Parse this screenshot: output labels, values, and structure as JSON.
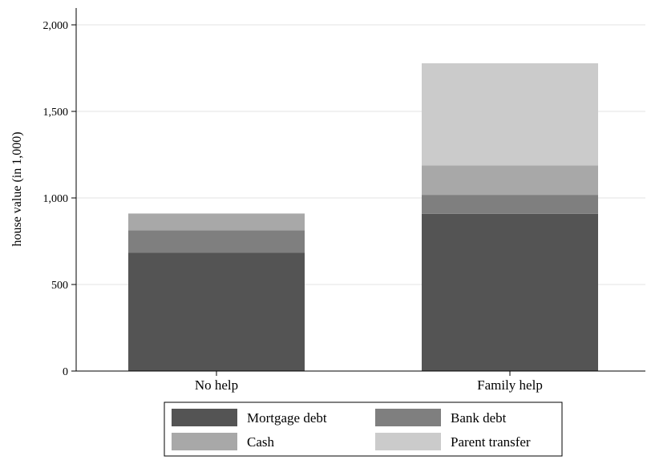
{
  "chart_data": {
    "type": "bar",
    "stacked": true,
    "categories": [
      "No help",
      "Family help"
    ],
    "series": [
      {
        "name": "Mortgage debt",
        "values": [
          683,
          908
        ],
        "color": "#545454"
      },
      {
        "name": "Bank debt",
        "values": [
          130,
          110
        ],
        "color": "#7f7f7f"
      },
      {
        "name": "Cash",
        "values": [
          97,
          170
        ],
        "color": "#a8a8a8"
      },
      {
        "name": "Parent transfer",
        "values": [
          0,
          590
        ],
        "color": "#cbcbcb"
      }
    ],
    "ylabel": "house value (in 1,000)",
    "ylim": [
      0,
      2000
    ],
    "yticks": [
      0,
      500,
      1000,
      1500,
      2000
    ],
    "ytick_labels": [
      "0",
      "500",
      "1,000",
      "1,500",
      "2,000"
    ],
    "grid": true,
    "legend_position": "bottom"
  }
}
